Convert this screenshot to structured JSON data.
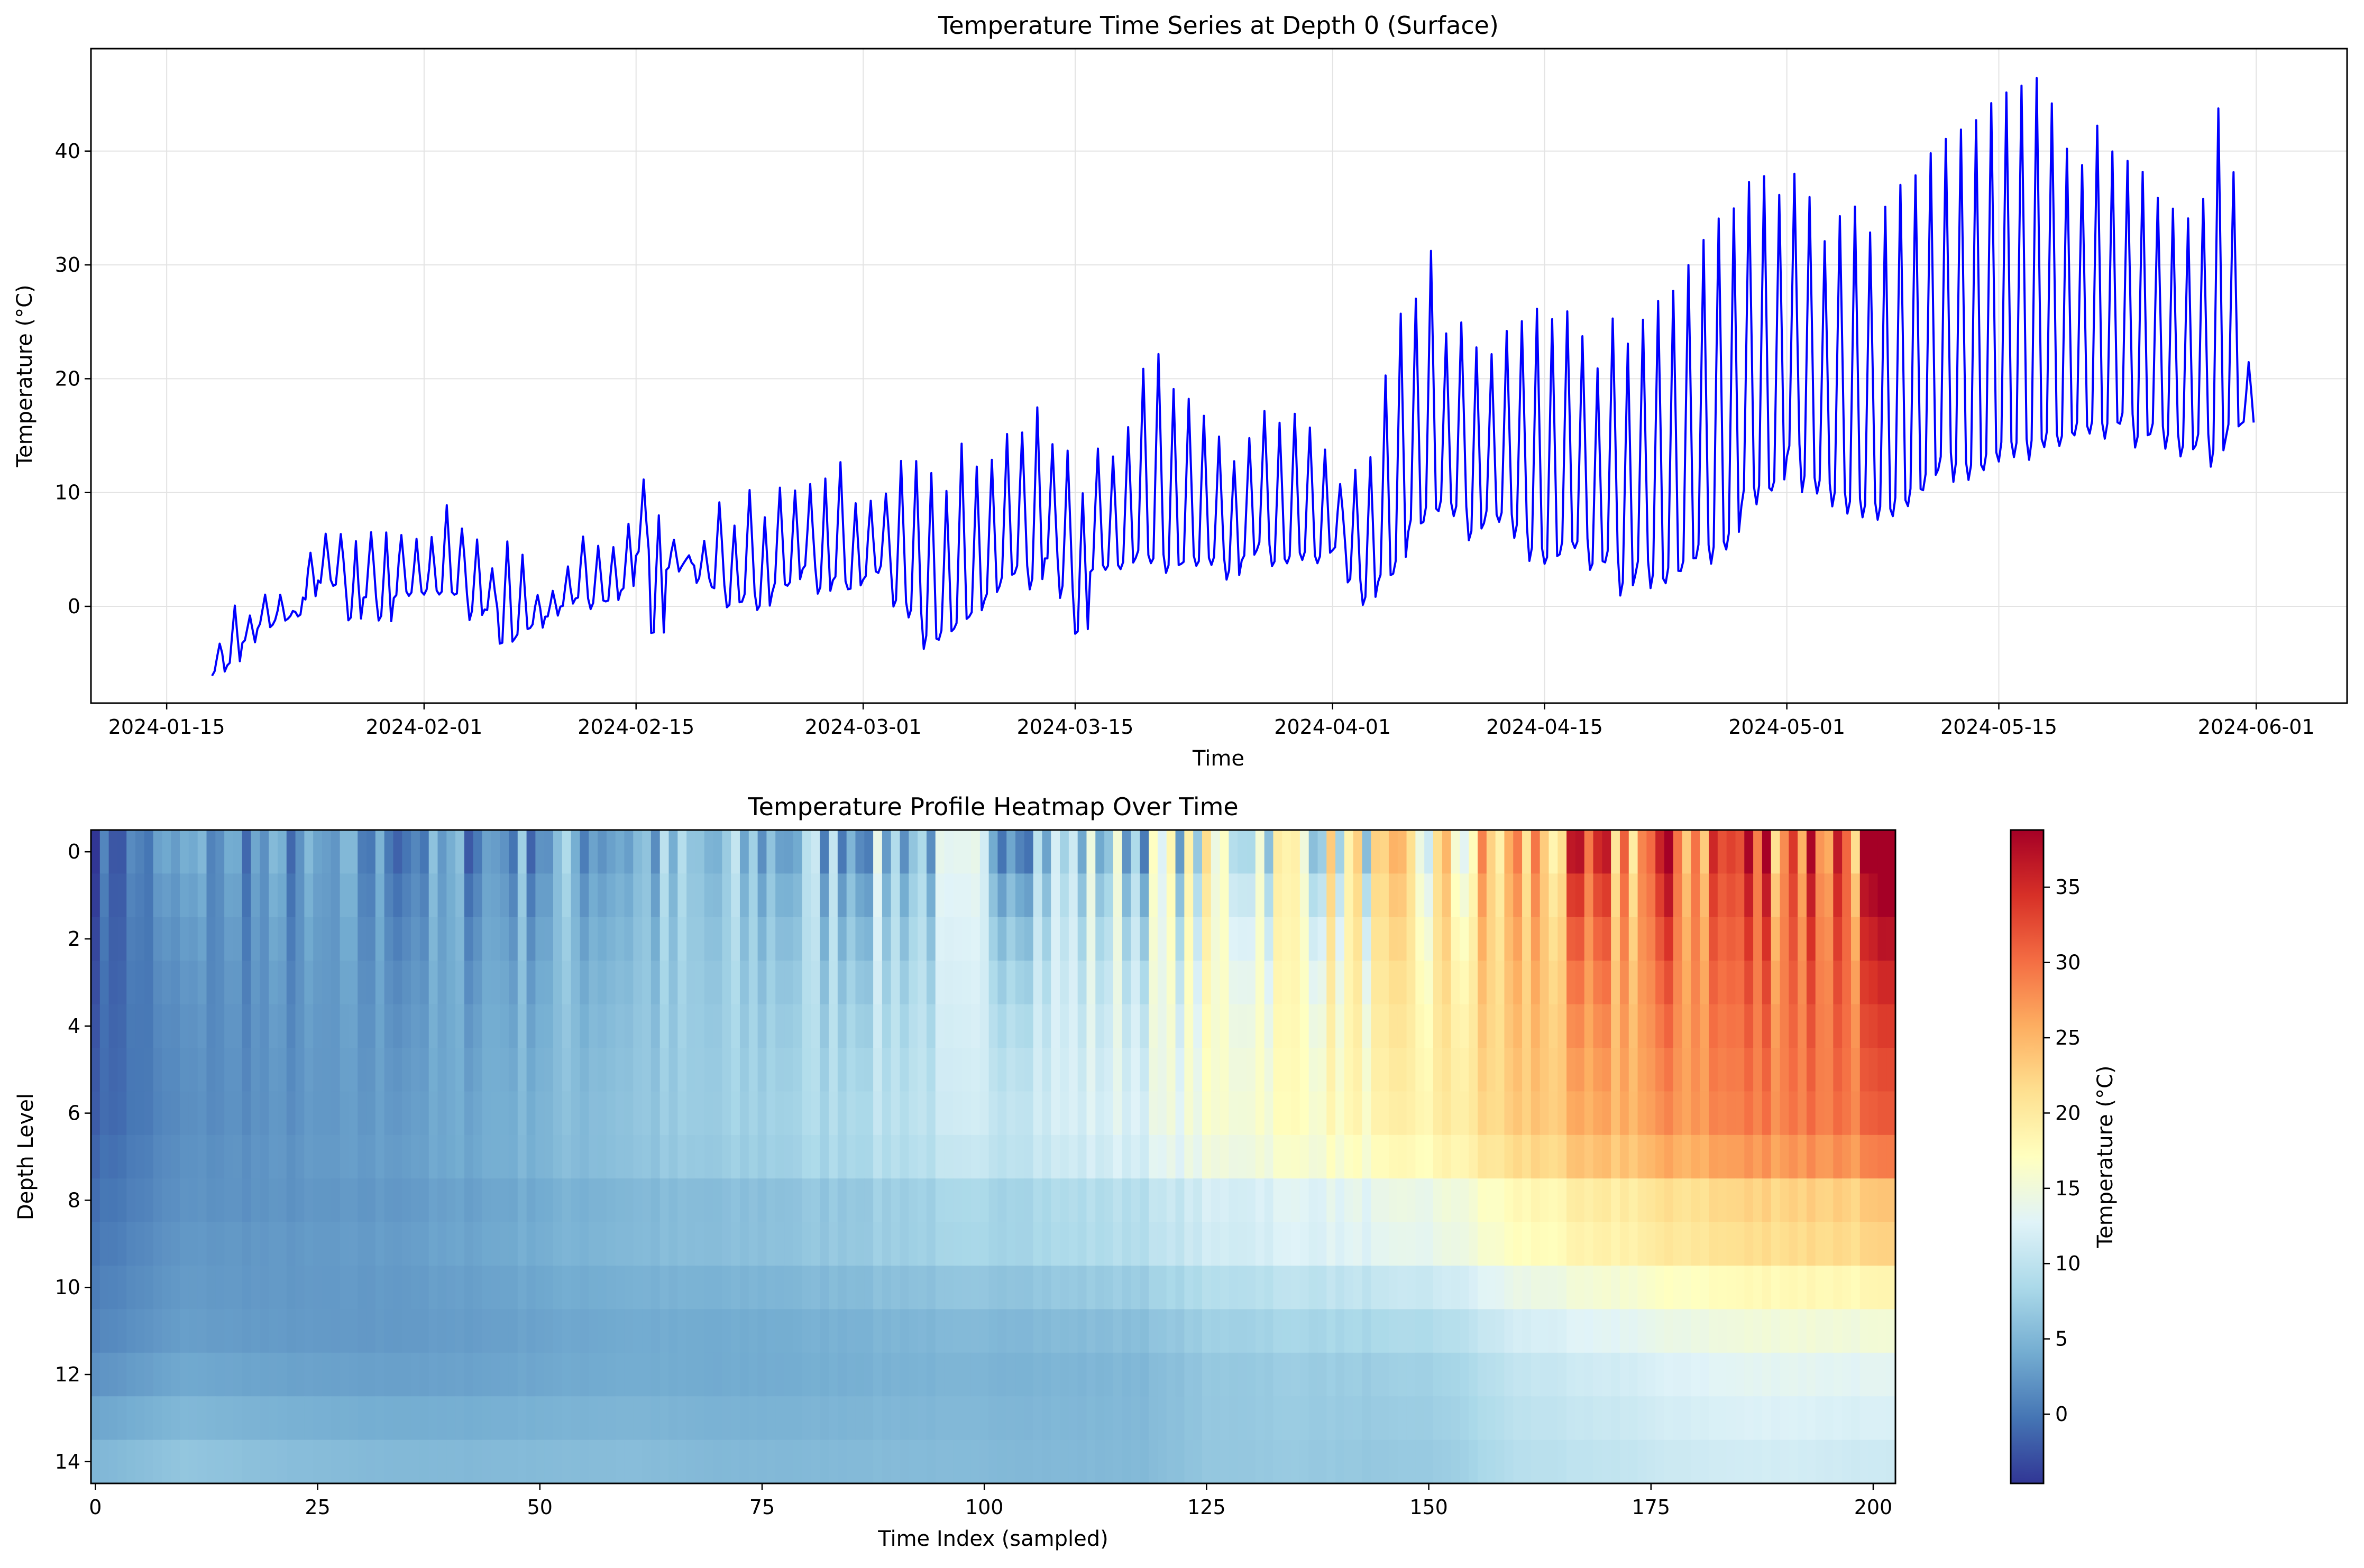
{
  "chart_data": [
    {
      "type": "line",
      "title": "Temperature Time Series at Depth 0 (Surface)",
      "xlabel": "Time",
      "ylabel": "Temperature (°C)",
      "x_ticks": [
        "2024-01-15",
        "2024-02-01",
        "2024-02-15",
        "2024-03-01",
        "2024-03-15",
        "2024-04-01",
        "2024-04-15",
        "2024-05-01",
        "2024-05-15",
        "2024-06-01"
      ],
      "y_ticks": [
        0,
        10,
        20,
        30,
        40
      ],
      "xlim": [
        "2024-01-10",
        "2024-06-07"
      ],
      "ylim": [
        -8.5,
        49
      ],
      "grid": true,
      "line_color": "#0000ff",
      "series": [
        {
          "x": [
            "2024-01-18",
            "2024-01-19",
            "2024-01-20",
            "2024-01-21",
            "2024-01-22",
            "2024-01-23",
            "2024-01-24",
            "2024-01-25",
            "2024-01-26",
            "2024-01-27",
            "2024-01-28",
            "2024-01-29",
            "2024-01-30",
            "2024-01-31",
            "2024-02-01",
            "2024-02-02",
            "2024-02-03",
            "2024-02-04",
            "2024-02-05",
            "2024-02-06",
            "2024-02-07",
            "2024-02-08",
            "2024-02-09",
            "2024-02-10",
            "2024-02-11",
            "2024-02-12",
            "2024-02-13",
            "2024-02-14",
            "2024-02-15",
            "2024-02-16",
            "2024-02-17",
            "2024-02-18",
            "2024-02-19",
            "2024-02-20",
            "2024-02-21",
            "2024-02-22",
            "2024-02-23",
            "2024-02-24",
            "2024-02-25",
            "2024-02-26",
            "2024-02-27",
            "2024-02-28",
            "2024-02-29",
            "2024-03-01",
            "2024-03-02",
            "2024-03-03",
            "2024-03-04",
            "2024-03-05",
            "2024-03-06",
            "2024-03-07",
            "2024-03-08",
            "2024-03-09",
            "2024-03-10",
            "2024-03-11",
            "2024-03-12",
            "2024-03-13",
            "2024-03-14",
            "2024-03-15",
            "2024-03-16",
            "2024-03-17",
            "2024-03-18",
            "2024-03-19",
            "2024-03-20",
            "2024-03-21",
            "2024-03-22",
            "2024-03-23",
            "2024-03-24",
            "2024-03-25",
            "2024-03-26",
            "2024-03-27",
            "2024-03-28",
            "2024-03-29",
            "2024-03-30",
            "2024-03-31",
            "2024-04-01",
            "2024-04-02",
            "2024-04-03",
            "2024-04-04",
            "2024-04-05",
            "2024-04-06",
            "2024-04-07",
            "2024-04-08",
            "2024-04-09",
            "2024-04-10",
            "2024-04-11",
            "2024-04-12",
            "2024-04-13",
            "2024-04-14",
            "2024-04-15",
            "2024-04-16",
            "2024-04-17",
            "2024-04-18",
            "2024-04-19",
            "2024-04-20",
            "2024-04-21",
            "2024-04-22",
            "2024-04-23",
            "2024-04-24",
            "2024-04-25",
            "2024-04-26",
            "2024-04-27",
            "2024-04-28",
            "2024-04-29",
            "2024-04-30",
            "2024-05-01",
            "2024-05-02",
            "2024-05-03",
            "2024-05-04",
            "2024-05-05",
            "2024-05-06",
            "2024-05-07",
            "2024-05-08",
            "2024-05-09",
            "2024-05-10",
            "2024-05-11",
            "2024-05-12",
            "2024-05-13",
            "2024-05-14",
            "2024-05-15",
            "2024-05-16",
            "2024-05-17",
            "2024-05-18",
            "2024-05-19",
            "2024-05-20",
            "2024-05-21",
            "2024-05-22",
            "2024-05-23",
            "2024-05-24",
            "2024-05-25",
            "2024-05-26",
            "2024-05-27",
            "2024-05-28",
            "2024-05-29",
            "2024-05-30",
            "2024-05-31",
            "2024-06-01"
          ],
          "min": [
            -5.8,
            -5.2,
            -3,
            -1.8,
            -1.5,
            -0.8,
            0.5,
            2,
            1.5,
            -1.5,
            0.5,
            -1.5,
            1,
            1,
            1,
            1,
            1,
            -1,
            -0.5,
            -3.5,
            -2.5,
            -1.8,
            -1,
            0,
            0.5,
            0,
            0.5,
            1.5,
            4.5,
            -2.5,
            3,
            3.5,
            2,
            1.5,
            0,
            0.5,
            -0.5,
            1.5,
            2,
            3,
            1,
            2,
            1.5,
            2.5,
            3,
            0,
            -1,
            -3.5,
            -3,
            -2,
            -1,
            0.5,
            2,
            3,
            1.5,
            4,
            1,
            -2.5,
            3,
            3,
            3.5,
            4,
            3.5,
            3,
            3.5,
            3.5,
            3.5,
            2.5,
            4,
            5,
            3.5,
            4,
            4,
            4,
            5,
            2,
            0,
            2,
            3,
            6.5,
            7.5,
            8.5,
            8,
            6,
            7.5,
            7.5,
            6,
            4,
            3.5,
            4.5,
            5,
            3,
            4,
            1,
            3,
            1.5,
            2,
            3,
            4,
            4,
            5,
            9,
            9,
            10,
            13,
            10,
            10,
            9,
            8,
            8,
            7.5,
            8,
            9,
            10,
            12,
            11,
            11,
            12,
            13,
            13,
            13,
            14,
            14,
            15,
            15,
            15,
            16,
            14,
            15,
            14,
            13,
            14,
            12,
            15,
            16,
            17
          ],
          "max": [
            -3,
            0.2,
            -1,
            1,
            1.2,
            -0.5,
            5,
            6.2,
            6.5,
            5.5,
            6.5,
            6.3,
            6.5,
            6,
            5.8,
            8.8,
            6.8,
            6,
            3.5,
            5.8,
            4.5,
            1,
            1.5,
            3.5,
            6.3,
            5.5,
            5,
            7,
            11,
            8,
            6,
            4.5,
            6,
            9,
            7,
            10.5,
            8,
            10.5,
            10,
            10.5,
            11,
            12.5,
            9,
            9.5,
            10,
            12.5,
            13,
            12,
            10,
            14,
            12,
            13,
            15,
            15.5,
            17.5,
            14,
            13.5,
            10,
            14,
            13,
            16,
            21,
            22,
            19,
            18,
            17,
            15,
            13,
            15,
            17,
            16,
            17,
            16,
            14,
            11,
            12,
            13,
            20,
            26,
            27,
            31,
            24,
            25,
            23,
            22,
            24,
            25,
            26,
            25,
            26,
            24,
            21,
            25,
            23,
            25,
            27,
            28,
            30,
            32,
            34,
            35,
            37,
            38,
            36,
            38,
            36,
            32,
            34,
            35,
            33,
            35,
            37,
            38,
            40,
            41,
            42,
            43,
            44,
            45,
            46,
            46.5,
            44,
            40,
            39,
            42,
            40,
            39,
            38,
            36,
            35,
            34,
            36,
            43.5,
            38,
            21.2
          ]
        }
      ]
    },
    {
      "type": "heatmap",
      "title": "Temperature Profile Heatmap Over Time",
      "xlabel": "Time Index (sampled)",
      "ylabel": "Depth Level",
      "x_ticks": [
        0,
        25,
        50,
        75,
        100,
        125,
        150,
        175,
        200
      ],
      "y_ticks": [
        0,
        2,
        4,
        6,
        8,
        10,
        12,
        14
      ],
      "xlim": [
        -0.5,
        202.5
      ],
      "ylim": [
        14.5,
        -0.5
      ],
      "n_time": 203,
      "n_depth": 15,
      "colormap": "RdYlBu_r",
      "colormap_colors": [
        "#313695",
        "#4575b4",
        "#74add1",
        "#abd9e9",
        "#e0f3f8",
        "#ffffbf",
        "#fee090",
        "#fdae61",
        "#f46d43",
        "#d73027",
        "#a50026"
      ],
      "vmin": -4.6,
      "vmax": 38.8,
      "surface_profile": {
        "time_index": [
          0,
          10,
          20,
          30,
          40,
          50,
          60,
          70,
          80,
          90,
          100,
          110,
          118,
          125,
          135,
          145,
          152,
          160,
          170,
          180,
          190,
          202
        ],
        "temperature": [
          -2,
          3,
          2,
          1.5,
          2,
          3.5,
          5,
          4.5,
          5.5,
          7,
          7.5,
          8,
          9,
          13,
          15,
          15,
          17,
          24,
          27,
          31,
          33,
          32
        ]
      },
      "deep_profile": {
        "depth": [
          0,
          6,
          7,
          8,
          9,
          10,
          11,
          12,
          13,
          14
        ],
        "temperature_start": [
          -2,
          -1.5,
          -1,
          -0.5,
          0,
          0.5,
          1,
          2,
          3.5,
          5
        ],
        "temperature_end": [
          32,
          30,
          28,
          23,
          22,
          18,
          15,
          13,
          12,
          11
        ]
      },
      "colorbar": {
        "label": "Temperature (°C)",
        "ticks": [
          0,
          5,
          10,
          15,
          20,
          25,
          30,
          35
        ]
      }
    }
  ]
}
